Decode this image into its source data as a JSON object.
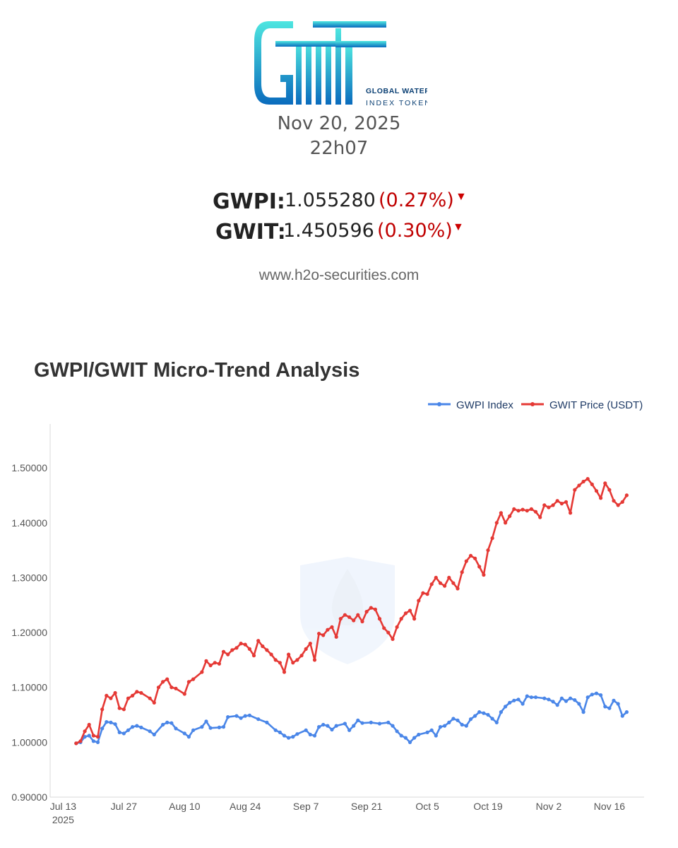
{
  "header": {
    "logo_text": "GWIT",
    "logo_subtitle_line1": "GLOBAL WATER",
    "logo_subtitle_line2": "INDEX TOKEN",
    "date": "Nov 20, 2025",
    "time": "22h07",
    "website": "www.h2o-securities.com"
  },
  "quotes": [
    {
      "label": "GWPI:",
      "value": "1.055280",
      "change": "(0.27%)",
      "direction": "down",
      "arrow": "▼"
    },
    {
      "label": "GWIT:",
      "value": "1.450596",
      "change": "(0.30%)",
      "direction": "down",
      "arrow": "▼"
    }
  ],
  "colors": {
    "gwpi": "#4A86E8",
    "gwit": "#E53935",
    "down": "#cc0000",
    "logo_top": "#4ee6e0",
    "logo_bottom": "#0a6bbd"
  },
  "chart_data": {
    "type": "line",
    "title": "GWPI/GWIT Micro-Trend Analysis",
    "xlabel": "",
    "ylabel": "",
    "x_ticks": [
      {
        "date": "2025-07-13",
        "label": "Jul 13",
        "sublabel": "2025"
      },
      {
        "date": "2025-07-27",
        "label": "Jul 27"
      },
      {
        "date": "2025-08-10",
        "label": "Aug 10"
      },
      {
        "date": "2025-08-24",
        "label": "Aug 24"
      },
      {
        "date": "2025-09-07",
        "label": "Sep 7"
      },
      {
        "date": "2025-09-21",
        "label": "Sep 21"
      },
      {
        "date": "2025-10-05",
        "label": "Oct 5"
      },
      {
        "date": "2025-10-19",
        "label": "Oct 19"
      },
      {
        "date": "2025-11-02",
        "label": "Nov 2"
      },
      {
        "date": "2025-11-16",
        "label": "Nov 16"
      }
    ],
    "xlim": [
      "2025-07-10",
      "2025-11-24"
    ],
    "y_ticks": [
      "0.90000",
      "1.00000",
      "1.10000",
      "1.20000",
      "1.30000",
      "1.40000",
      "1.50000"
    ],
    "ylim": [
      0.9,
      1.58
    ],
    "grid": false,
    "legend_position": "top-right",
    "series": [
      {
        "name": "GWPI Index",
        "color": "#4A86E8",
        "points": [
          [
            "2025-07-16",
            0.998
          ],
          [
            "2025-07-17",
            1.0
          ],
          [
            "2025-07-18",
            1.01
          ],
          [
            "2025-07-19",
            1.012
          ],
          [
            "2025-07-20",
            1.002
          ],
          [
            "2025-07-21",
            1.0
          ],
          [
            "2025-07-22",
            1.025
          ],
          [
            "2025-07-23",
            1.037
          ],
          [
            "2025-07-24",
            1.036
          ],
          [
            "2025-07-25",
            1.033
          ],
          [
            "2025-07-26",
            1.018
          ],
          [
            "2025-07-27",
            1.016
          ],
          [
            "2025-07-28",
            1.022
          ],
          [
            "2025-07-29",
            1.028
          ],
          [
            "2025-07-30",
            1.03
          ],
          [
            "2025-07-31",
            1.027
          ],
          [
            "2025-08-02",
            1.02
          ],
          [
            "2025-08-03",
            1.014
          ],
          [
            "2025-08-05",
            1.032
          ],
          [
            "2025-08-06",
            1.036
          ],
          [
            "2025-08-07",
            1.035
          ],
          [
            "2025-08-08",
            1.025
          ],
          [
            "2025-08-10",
            1.016
          ],
          [
            "2025-08-11",
            1.01
          ],
          [
            "2025-08-12",
            1.022
          ],
          [
            "2025-08-14",
            1.028
          ],
          [
            "2025-08-15",
            1.038
          ],
          [
            "2025-08-16",
            1.026
          ],
          [
            "2025-08-18",
            1.027
          ],
          [
            "2025-08-19",
            1.028
          ],
          [
            "2025-08-20",
            1.046
          ],
          [
            "2025-08-22",
            1.048
          ],
          [
            "2025-08-23",
            1.044
          ],
          [
            "2025-08-24",
            1.048
          ],
          [
            "2025-08-25",
            1.049
          ],
          [
            "2025-08-27",
            1.042
          ],
          [
            "2025-08-29",
            1.036
          ],
          [
            "2025-08-31",
            1.022
          ],
          [
            "2025-09-01",
            1.018
          ],
          [
            "2025-09-02",
            1.012
          ],
          [
            "2025-09-03",
            1.008
          ],
          [
            "2025-09-04",
            1.01
          ],
          [
            "2025-09-05",
            1.015
          ],
          [
            "2025-09-07",
            1.022
          ],
          [
            "2025-09-08",
            1.014
          ],
          [
            "2025-09-09",
            1.012
          ],
          [
            "2025-09-10",
            1.028
          ],
          [
            "2025-09-11",
            1.032
          ],
          [
            "2025-09-12",
            1.03
          ],
          [
            "2025-09-13",
            1.023
          ],
          [
            "2025-09-14",
            1.03
          ],
          [
            "2025-09-16",
            1.034
          ],
          [
            "2025-09-17",
            1.022
          ],
          [
            "2025-09-18",
            1.03
          ],
          [
            "2025-09-19",
            1.04
          ],
          [
            "2025-09-20",
            1.035
          ],
          [
            "2025-09-22",
            1.036
          ],
          [
            "2025-09-24",
            1.034
          ],
          [
            "2025-09-26",
            1.036
          ],
          [
            "2025-09-27",
            1.03
          ],
          [
            "2025-09-28",
            1.02
          ],
          [
            "2025-09-29",
            1.012
          ],
          [
            "2025-09-30",
            1.008
          ],
          [
            "2025-10-01",
            1.0
          ],
          [
            "2025-10-02",
            1.008
          ],
          [
            "2025-10-03",
            1.014
          ],
          [
            "2025-10-05",
            1.018
          ],
          [
            "2025-10-06",
            1.022
          ],
          [
            "2025-10-07",
            1.012
          ],
          [
            "2025-10-08",
            1.028
          ],
          [
            "2025-10-09",
            1.03
          ],
          [
            "2025-10-10",
            1.036
          ],
          [
            "2025-10-11",
            1.043
          ],
          [
            "2025-10-12",
            1.04
          ],
          [
            "2025-10-13",
            1.032
          ],
          [
            "2025-10-14",
            1.03
          ],
          [
            "2025-10-15",
            1.042
          ],
          [
            "2025-10-16",
            1.048
          ],
          [
            "2025-10-17",
            1.055
          ],
          [
            "2025-10-18",
            1.053
          ],
          [
            "2025-10-19",
            1.05
          ],
          [
            "2025-10-20",
            1.043
          ],
          [
            "2025-10-21",
            1.036
          ],
          [
            "2025-10-22",
            1.055
          ],
          [
            "2025-10-23",
            1.065
          ],
          [
            "2025-10-24",
            1.072
          ],
          [
            "2025-10-25",
            1.076
          ],
          [
            "2025-10-26",
            1.078
          ],
          [
            "2025-10-27",
            1.07
          ],
          [
            "2025-10-28",
            1.084
          ],
          [
            "2025-10-29",
            1.082
          ],
          [
            "2025-10-30",
            1.082
          ],
          [
            "2025-11-01",
            1.08
          ],
          [
            "2025-11-02",
            1.078
          ],
          [
            "2025-11-03",
            1.074
          ],
          [
            "2025-11-04",
            1.068
          ],
          [
            "2025-11-05",
            1.08
          ],
          [
            "2025-11-06",
            1.075
          ],
          [
            "2025-11-07",
            1.08
          ],
          [
            "2025-11-08",
            1.077
          ],
          [
            "2025-11-09",
            1.07
          ],
          [
            "2025-11-10",
            1.055
          ],
          [
            "2025-11-11",
            1.082
          ],
          [
            "2025-11-12",
            1.087
          ],
          [
            "2025-11-13",
            1.089
          ],
          [
            "2025-11-14",
            1.086
          ],
          [
            "2025-11-15",
            1.065
          ],
          [
            "2025-11-16",
            1.062
          ],
          [
            "2025-11-17",
            1.076
          ],
          [
            "2025-11-18",
            1.07
          ],
          [
            "2025-11-19",
            1.048
          ],
          [
            "2025-11-20",
            1.055
          ]
        ]
      },
      {
        "name": "GWIT Price (USDT)",
        "color": "#E53935",
        "points": [
          [
            "2025-07-16",
            0.998
          ],
          [
            "2025-07-17",
            1.002
          ],
          [
            "2025-07-18",
            1.02
          ],
          [
            "2025-07-19",
            1.032
          ],
          [
            "2025-07-20",
            1.012
          ],
          [
            "2025-07-21",
            1.01
          ],
          [
            "2025-07-22",
            1.06
          ],
          [
            "2025-07-23",
            1.085
          ],
          [
            "2025-07-24",
            1.08
          ],
          [
            "2025-07-25",
            1.09
          ],
          [
            "2025-07-26",
            1.062
          ],
          [
            "2025-07-27",
            1.06
          ],
          [
            "2025-07-28",
            1.08
          ],
          [
            "2025-07-29",
            1.085
          ],
          [
            "2025-07-30",
            1.092
          ],
          [
            "2025-07-31",
            1.09
          ],
          [
            "2025-08-02",
            1.08
          ],
          [
            "2025-08-03",
            1.072
          ],
          [
            "2025-08-04",
            1.1
          ],
          [
            "2025-08-05",
            1.11
          ],
          [
            "2025-08-06",
            1.115
          ],
          [
            "2025-08-07",
            1.1
          ],
          [
            "2025-08-08",
            1.098
          ],
          [
            "2025-08-10",
            1.088
          ],
          [
            "2025-08-11",
            1.11
          ],
          [
            "2025-08-12",
            1.115
          ],
          [
            "2025-08-14",
            1.128
          ],
          [
            "2025-08-15",
            1.148
          ],
          [
            "2025-08-16",
            1.14
          ],
          [
            "2025-08-17",
            1.145
          ],
          [
            "2025-08-18",
            1.143
          ],
          [
            "2025-08-19",
            1.165
          ],
          [
            "2025-08-20",
            1.16
          ],
          [
            "2025-08-21",
            1.168
          ],
          [
            "2025-08-22",
            1.172
          ],
          [
            "2025-08-23",
            1.18
          ],
          [
            "2025-08-24",
            1.178
          ],
          [
            "2025-08-25",
            1.17
          ],
          [
            "2025-08-26",
            1.158
          ],
          [
            "2025-08-27",
            1.185
          ],
          [
            "2025-08-28",
            1.175
          ],
          [
            "2025-08-29",
            1.168
          ],
          [
            "2025-08-30",
            1.16
          ],
          [
            "2025-08-31",
            1.15
          ],
          [
            "2025-09-01",
            1.145
          ],
          [
            "2025-09-02",
            1.128
          ],
          [
            "2025-09-03",
            1.16
          ],
          [
            "2025-09-04",
            1.145
          ],
          [
            "2025-09-05",
            1.15
          ],
          [
            "2025-09-06",
            1.158
          ],
          [
            "2025-09-07",
            1.17
          ],
          [
            "2025-09-08",
            1.18
          ],
          [
            "2025-09-09",
            1.15
          ],
          [
            "2025-09-10",
            1.198
          ],
          [
            "2025-09-11",
            1.195
          ],
          [
            "2025-09-12",
            1.205
          ],
          [
            "2025-09-13",
            1.21
          ],
          [
            "2025-09-14",
            1.192
          ],
          [
            "2025-09-15",
            1.225
          ],
          [
            "2025-09-16",
            1.232
          ],
          [
            "2025-09-17",
            1.228
          ],
          [
            "2025-09-18",
            1.222
          ],
          [
            "2025-09-19",
            1.232
          ],
          [
            "2025-09-20",
            1.22
          ],
          [
            "2025-09-21",
            1.238
          ],
          [
            "2025-09-22",
            1.245
          ],
          [
            "2025-09-23",
            1.242
          ],
          [
            "2025-09-24",
            1.225
          ],
          [
            "2025-09-25",
            1.208
          ],
          [
            "2025-09-26",
            1.2
          ],
          [
            "2025-09-27",
            1.188
          ],
          [
            "2025-09-28",
            1.21
          ],
          [
            "2025-09-29",
            1.225
          ],
          [
            "2025-09-30",
            1.235
          ],
          [
            "2025-10-01",
            1.24
          ],
          [
            "2025-10-02",
            1.225
          ],
          [
            "2025-10-03",
            1.258
          ],
          [
            "2025-10-04",
            1.272
          ],
          [
            "2025-10-05",
            1.27
          ],
          [
            "2025-10-06",
            1.288
          ],
          [
            "2025-10-07",
            1.3
          ],
          [
            "2025-10-08",
            1.29
          ],
          [
            "2025-10-09",
            1.285
          ],
          [
            "2025-10-10",
            1.3
          ],
          [
            "2025-10-11",
            1.29
          ],
          [
            "2025-10-12",
            1.28
          ],
          [
            "2025-10-13",
            1.31
          ],
          [
            "2025-10-14",
            1.33
          ],
          [
            "2025-10-15",
            1.34
          ],
          [
            "2025-10-16",
            1.335
          ],
          [
            "2025-10-17",
            1.32
          ],
          [
            "2025-10-18",
            1.305
          ],
          [
            "2025-10-19",
            1.35
          ],
          [
            "2025-10-20",
            1.372
          ],
          [
            "2025-10-21",
            1.4
          ],
          [
            "2025-10-22",
            1.418
          ],
          [
            "2025-10-23",
            1.4
          ],
          [
            "2025-10-24",
            1.412
          ],
          [
            "2025-10-25",
            1.425
          ],
          [
            "2025-10-26",
            1.422
          ],
          [
            "2025-10-27",
            1.424
          ],
          [
            "2025-10-28",
            1.422
          ],
          [
            "2025-10-29",
            1.425
          ],
          [
            "2025-10-30",
            1.42
          ],
          [
            "2025-10-31",
            1.41
          ],
          [
            "2025-11-01",
            1.432
          ],
          [
            "2025-11-02",
            1.428
          ],
          [
            "2025-11-03",
            1.432
          ],
          [
            "2025-11-04",
            1.44
          ],
          [
            "2025-11-05",
            1.435
          ],
          [
            "2025-11-06",
            1.438
          ],
          [
            "2025-11-07",
            1.418
          ],
          [
            "2025-11-08",
            1.46
          ],
          [
            "2025-11-09",
            1.468
          ],
          [
            "2025-11-10",
            1.475
          ],
          [
            "2025-11-11",
            1.48
          ],
          [
            "2025-11-12",
            1.47
          ],
          [
            "2025-11-13",
            1.458
          ],
          [
            "2025-11-14",
            1.445
          ],
          [
            "2025-11-15",
            1.472
          ],
          [
            "2025-11-16",
            1.46
          ],
          [
            "2025-11-17",
            1.44
          ],
          [
            "2025-11-18",
            1.432
          ],
          [
            "2025-11-19",
            1.438
          ],
          [
            "2025-11-20",
            1.45
          ]
        ]
      }
    ]
  }
}
